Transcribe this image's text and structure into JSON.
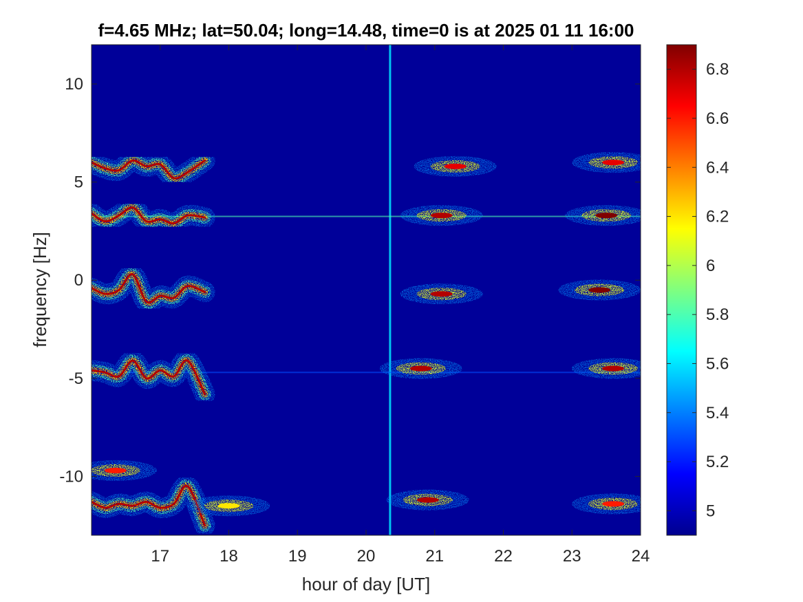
{
  "chart_data": {
    "type": "heatmap",
    "title": "f=4.65 MHz;  lat=50.04; long=14.48, time=0 is at 2025 01 11 16:00",
    "xlabel": "hour of day [UT]",
    "ylabel": "frequency [Hz]",
    "xlim": [
      16,
      24
    ],
    "ylim": [
      -13,
      12
    ],
    "x_ticks": [
      "17",
      "18",
      "19",
      "20",
      "21",
      "22",
      "23",
      "24"
    ],
    "x_tick_values": [
      17,
      18,
      19,
      20,
      21,
      22,
      23,
      24
    ],
    "y_ticks": [
      "10",
      "5",
      "0",
      "-5",
      "-10"
    ],
    "y_tick_values": [
      10,
      5,
      0,
      -5,
      -10
    ],
    "colorbar": {
      "colormap": "jet",
      "clim": [
        4.9,
        6.9
      ],
      "ticks": [
        "6.8",
        "6.6",
        "6.4",
        "6.2",
        "6",
        "5.8",
        "5.6",
        "5.4",
        "5.2",
        "5"
      ],
      "tick_values": [
        6.8,
        6.6,
        6.4,
        6.2,
        6.0,
        5.8,
        5.6,
        5.4,
        5.2,
        5.0
      ]
    },
    "background_value": 4.95,
    "grid": false,
    "traces": [
      {
        "x": [
          16.0,
          16.2,
          16.4,
          16.6,
          16.8,
          17.0,
          17.2,
          17.4,
          17.65
        ],
        "y": [
          6.0,
          5.7,
          5.6,
          6.1,
          5.8,
          5.9,
          5.2,
          5.5,
          6.1
        ],
        "value": 6.8
      },
      {
        "x": [
          16.0,
          16.2,
          16.4,
          16.6,
          16.8,
          17.0,
          17.2,
          17.4,
          17.65
        ],
        "y": [
          3.4,
          3.0,
          3.3,
          3.7,
          3.0,
          3.1,
          2.9,
          3.3,
          3.2
        ],
        "value": 6.8
      },
      {
        "x": [
          16.0,
          16.2,
          16.4,
          16.6,
          16.8,
          17.0,
          17.2,
          17.4,
          17.65
        ],
        "y": [
          -0.4,
          -0.7,
          -0.5,
          0.3,
          -1.1,
          -0.8,
          -0.9,
          -0.3,
          -0.6
        ],
        "value": 6.8
      },
      {
        "x": [
          16.0,
          16.2,
          16.4,
          16.6,
          16.8,
          17.0,
          17.2,
          17.4,
          17.65
        ],
        "y": [
          -4.6,
          -4.7,
          -4.9,
          -4.1,
          -5.0,
          -4.6,
          -4.9,
          -4.1,
          -5.8
        ],
        "value": 6.8
      },
      {
        "x": [
          16.0,
          16.2,
          16.4,
          16.6,
          16.8,
          17.0,
          17.2,
          17.4,
          17.65
        ],
        "y": [
          -11.3,
          -11.6,
          -11.4,
          -11.5,
          -11.3,
          -11.6,
          -11.4,
          -10.5,
          -12.5
        ],
        "value": 6.8
      }
    ],
    "blobs": [
      {
        "x": 16.35,
        "y": -9.7,
        "value": 6.6
      },
      {
        "x": 18.0,
        "y": -11.5,
        "value": 6.2
      },
      {
        "x": 21.3,
        "y": 5.8,
        "value": 6.7
      },
      {
        "x": 21.1,
        "y": 3.3,
        "value": 6.8
      },
      {
        "x": 21.1,
        "y": -0.7,
        "value": 6.8
      },
      {
        "x": 20.8,
        "y": -4.5,
        "value": 6.8
      },
      {
        "x": 20.9,
        "y": -11.2,
        "value": 6.8
      },
      {
        "x": 23.6,
        "y": 6.0,
        "value": 6.7
      },
      {
        "x": 23.5,
        "y": 3.3,
        "value": 6.9
      },
      {
        "x": 23.4,
        "y": -0.5,
        "value": 6.9
      },
      {
        "x": 23.6,
        "y": -4.5,
        "value": 6.8
      },
      {
        "x": 23.6,
        "y": -11.4,
        "value": 6.6
      }
    ],
    "lines": [
      {
        "orientation": "vertical",
        "x": 20.35,
        "value": 5.6
      },
      {
        "orientation": "horizontal",
        "y": 3.25,
        "value": 5.8
      },
      {
        "orientation": "horizontal",
        "y": -4.7,
        "value": 5.3
      }
    ]
  }
}
